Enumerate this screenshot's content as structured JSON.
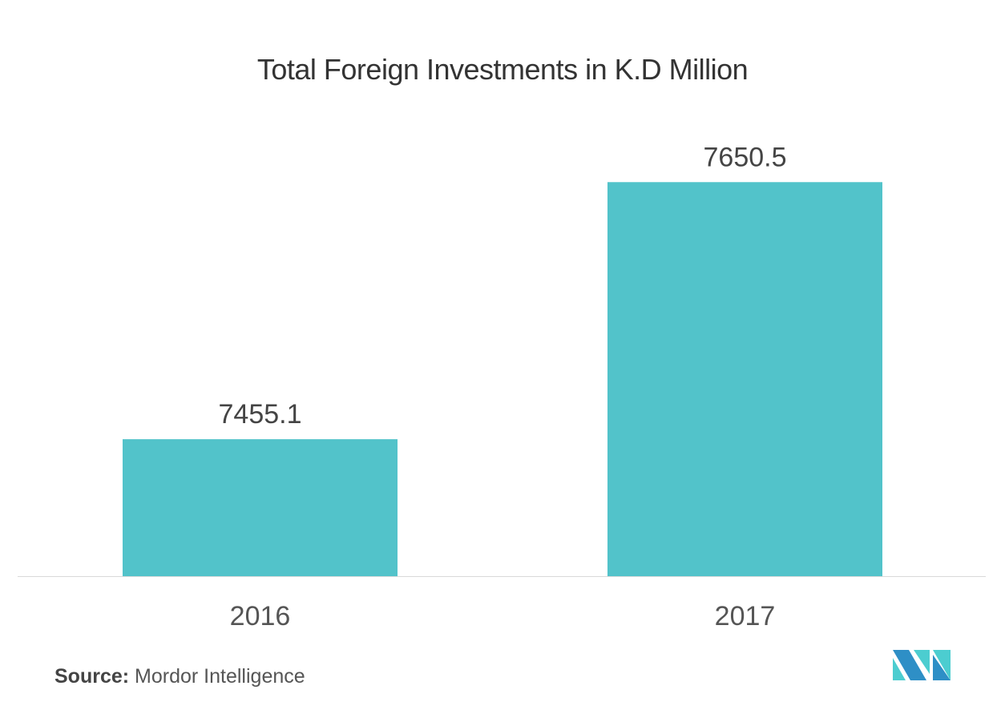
{
  "chart_data": {
    "type": "bar",
    "title": "Total Foreign Investments in K.D Million",
    "categories": [
      "2016",
      "2017"
    ],
    "values": [
      7455.1,
      7650.5
    ],
    "data_labels": [
      "7455.1",
      "7650.5"
    ],
    "ylim": [
      7351,
      7700
    ],
    "grid": false,
    "bar_color": "#52c3ca",
    "xlabel": "",
    "ylabel": ""
  },
  "source": {
    "label": "Source:",
    "text": "Mordor Intelligence"
  },
  "logo": {
    "colors": [
      "#2e8fc6",
      "#4ccdd0"
    ]
  }
}
